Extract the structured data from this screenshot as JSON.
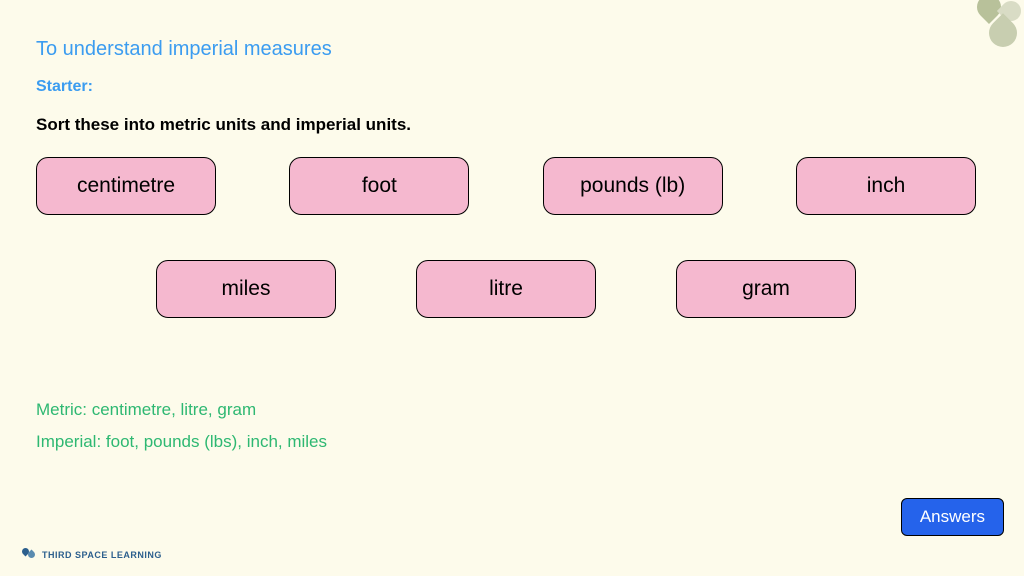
{
  "title": "To understand imperial measures",
  "starter_label": "Starter:",
  "instruction": "Sort these into metric units and imperial units.",
  "tiles": {
    "row1": [
      "centimetre",
      "foot",
      "pounds (lb)",
      "inch"
    ],
    "row2": [
      "miles",
      "litre",
      "gram"
    ]
  },
  "answers": {
    "metric": "Metric: centimetre, litre, gram",
    "imperial": "Imperial: foot, pounds (lbs), inch, miles"
  },
  "answers_button": "Answers",
  "footer_brand": "THIRD SPACE LEARNING",
  "colors": {
    "background": "#fdfbeb",
    "title": "#3b9cf0",
    "tile_bg": "#f5b8cf",
    "tile_border": "#000000",
    "answer_text": "#2eb872",
    "button_bg": "#2563eb",
    "button_text": "#ffffff"
  },
  "tile_style": {
    "width": 180,
    "height": 58,
    "border_radius": 12,
    "font_size": 21
  }
}
